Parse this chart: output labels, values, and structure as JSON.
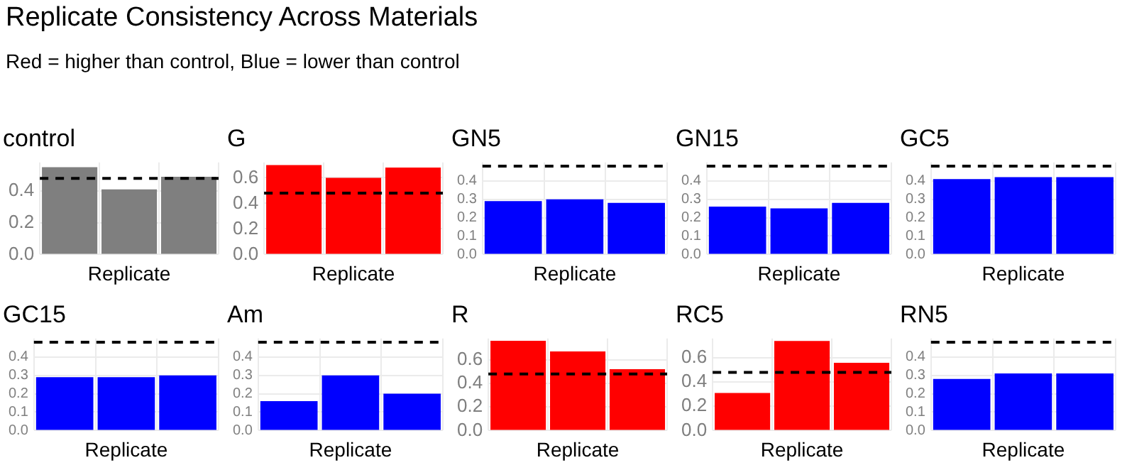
{
  "chart_data": [
    {
      "type": "bar",
      "title": "control",
      "xlabel": "Replicate",
      "categories": [
        null,
        null,
        null
      ],
      "values": [
        0.55,
        0.41,
        0.49
      ],
      "color": "#7f7f7f",
      "ylim": [
        0,
        0.58
      ],
      "yticks": [
        {
          "value": 0,
          "label": "0.0"
        },
        {
          "value": 0.2,
          "label": "0.2"
        },
        {
          "value": 0.4,
          "label": "0.4"
        }
      ],
      "grid": true,
      "tick_labels": "y",
      "ref_lines": [
        {
          "axis": "y",
          "value": 0.48,
          "color": "#000000",
          "line_style": "dashed"
        }
      ],
      "annotations": [
        "Replicate Consistency Across Materials",
        "Red = higher than control, Blue = lower than control"
      ]
    },
    {
      "type": "bar",
      "title": "G",
      "xlabel": "Replicate",
      "categories": [
        null,
        null,
        null
      ],
      "values": [
        0.7,
        0.6,
        0.68
      ],
      "color": "#ff0000",
      "ylim": [
        0,
        0.72
      ],
      "yticks": [
        {
          "value": 0,
          "label": "0.0"
        },
        {
          "value": 0.2,
          "label": "0.2"
        },
        {
          "value": 0.4,
          "label": "0.4"
        },
        {
          "value": 0.6,
          "label": "0.6"
        }
      ],
      "grid": true,
      "tick_labels": "y",
      "ref_lines": [
        {
          "axis": "y",
          "value": 0.48,
          "color": "#000000",
          "line_style": "dashed"
        }
      ]
    },
    {
      "type": "bar",
      "title": "GN5",
      "xlabel": "Replicate",
      "categories": [
        null,
        null,
        null
      ],
      "values": [
        0.29,
        0.3,
        0.28
      ],
      "color": "#0000ff",
      "ylim": [
        0,
        0.5
      ],
      "yticks": [
        {
          "value": 0,
          "label": "0.0"
        },
        {
          "value": 0.1,
          "label": "0.1"
        },
        {
          "value": 0.2,
          "label": "0.2"
        },
        {
          "value": 0.3,
          "label": "0.3"
        },
        {
          "value": 0.4,
          "label": "0.4"
        }
      ],
      "grid": true,
      "tick_labels": "y",
      "ref_lines": [
        {
          "axis": "y",
          "value": 0.48,
          "color": "#000000",
          "line_style": "dashed"
        }
      ]
    },
    {
      "type": "bar",
      "title": "GN15",
      "xlabel": "Replicate",
      "categories": [
        null,
        null,
        null
      ],
      "values": [
        0.26,
        0.25,
        0.28
      ],
      "color": "#0000ff",
      "ylim": [
        0,
        0.5
      ],
      "yticks": [
        {
          "value": 0,
          "label": "0.0"
        },
        {
          "value": 0.1,
          "label": "0.1"
        },
        {
          "value": 0.2,
          "label": "0.2"
        },
        {
          "value": 0.3,
          "label": "0.3"
        },
        {
          "value": 0.4,
          "label": "0.4"
        }
      ],
      "grid": true,
      "tick_labels": "y",
      "ref_lines": [
        {
          "axis": "y",
          "value": 0.48,
          "color": "#000000",
          "line_style": "dashed"
        }
      ]
    },
    {
      "type": "bar",
      "title": "GC5",
      "xlabel": "Replicate",
      "categories": [
        null,
        null,
        null
      ],
      "values": [
        0.41,
        0.42,
        0.42
      ],
      "color": "#0000ff",
      "ylim": [
        0,
        0.5
      ],
      "yticks": [
        {
          "value": 0,
          "label": "0.0"
        },
        {
          "value": 0.1,
          "label": "0.1"
        },
        {
          "value": 0.2,
          "label": "0.2"
        },
        {
          "value": 0.3,
          "label": "0.3"
        },
        {
          "value": 0.4,
          "label": "0.4"
        }
      ],
      "grid": true,
      "tick_labels": "y",
      "ref_lines": [
        {
          "axis": "y",
          "value": 0.48,
          "color": "#000000",
          "line_style": "dashed"
        }
      ]
    },
    {
      "type": "bar",
      "title": "GC15",
      "xlabel": "Replicate",
      "categories": [
        null,
        null,
        null
      ],
      "values": [
        0.29,
        0.29,
        0.3
      ],
      "color": "#0000ff",
      "ylim": [
        0,
        0.5
      ],
      "yticks": [
        {
          "value": 0,
          "label": "0.0"
        },
        {
          "value": 0.1,
          "label": "0.1"
        },
        {
          "value": 0.2,
          "label": "0.2"
        },
        {
          "value": 0.3,
          "label": "0.3"
        },
        {
          "value": 0.4,
          "label": "0.4"
        }
      ],
      "grid": true,
      "tick_labels": "y",
      "ref_lines": [
        {
          "axis": "y",
          "value": 0.48,
          "color": "#000000",
          "line_style": "dashed"
        }
      ]
    },
    {
      "type": "bar",
      "title": "Am",
      "xlabel": "Replicate",
      "categories": [
        null,
        null,
        null
      ],
      "values": [
        0.16,
        0.3,
        0.2
      ],
      "color": "#0000ff",
      "ylim": [
        0,
        0.5
      ],
      "yticks": [
        {
          "value": 0,
          "label": "0.0"
        },
        {
          "value": 0.1,
          "label": "0.1"
        },
        {
          "value": 0.2,
          "label": "0.2"
        },
        {
          "value": 0.3,
          "label": "0.3"
        },
        {
          "value": 0.4,
          "label": "0.4"
        }
      ],
      "grid": true,
      "tick_labels": "y",
      "ref_lines": [
        {
          "axis": "y",
          "value": 0.48,
          "color": "#000000",
          "line_style": "dashed"
        }
      ]
    },
    {
      "type": "bar",
      "title": "R",
      "xlabel": "Replicate",
      "categories": [
        null,
        null,
        null
      ],
      "values": [
        0.76,
        0.67,
        0.52
      ],
      "color": "#ff0000",
      "ylim": [
        0,
        0.78
      ],
      "yticks": [
        {
          "value": 0,
          "label": "0.0"
        },
        {
          "value": 0.2,
          "label": "0.2"
        },
        {
          "value": 0.4,
          "label": "0.4"
        },
        {
          "value": 0.6,
          "label": "0.6"
        }
      ],
      "grid": true,
      "tick_labels": "y",
      "ref_lines": [
        {
          "axis": "y",
          "value": 0.48,
          "color": "#000000",
          "line_style": "dashed"
        }
      ]
    },
    {
      "type": "bar",
      "title": "RC5",
      "xlabel": "Replicate",
      "categories": [
        null,
        null,
        null
      ],
      "values": [
        0.31,
        0.74,
        0.56
      ],
      "color": "#ff0000",
      "ylim": [
        0,
        0.76
      ],
      "yticks": [
        {
          "value": 0,
          "label": "0.0"
        },
        {
          "value": 0.2,
          "label": "0.2"
        },
        {
          "value": 0.4,
          "label": "0.4"
        },
        {
          "value": 0.6,
          "label": "0.6"
        }
      ],
      "grid": true,
      "tick_labels": "y",
      "ref_lines": [
        {
          "axis": "y",
          "value": 0.48,
          "color": "#000000",
          "line_style": "dashed"
        }
      ]
    },
    {
      "type": "bar",
      "title": "RN5",
      "xlabel": "Replicate",
      "categories": [
        null,
        null,
        null
      ],
      "values": [
        0.28,
        0.31,
        0.31
      ],
      "color": "#0000ff",
      "ylim": [
        0,
        0.5
      ],
      "yticks": [
        {
          "value": 0,
          "label": "0.0"
        },
        {
          "value": 0.1,
          "label": "0.1"
        },
        {
          "value": 0.2,
          "label": "0.2"
        },
        {
          "value": 0.3,
          "label": "0.3"
        },
        {
          "value": 0.4,
          "label": "0.4"
        }
      ],
      "grid": true,
      "tick_labels": "y",
      "ref_lines": [
        {
          "axis": "y",
          "value": 0.48,
          "color": "#000000",
          "line_style": "dashed"
        }
      ]
    }
  ]
}
